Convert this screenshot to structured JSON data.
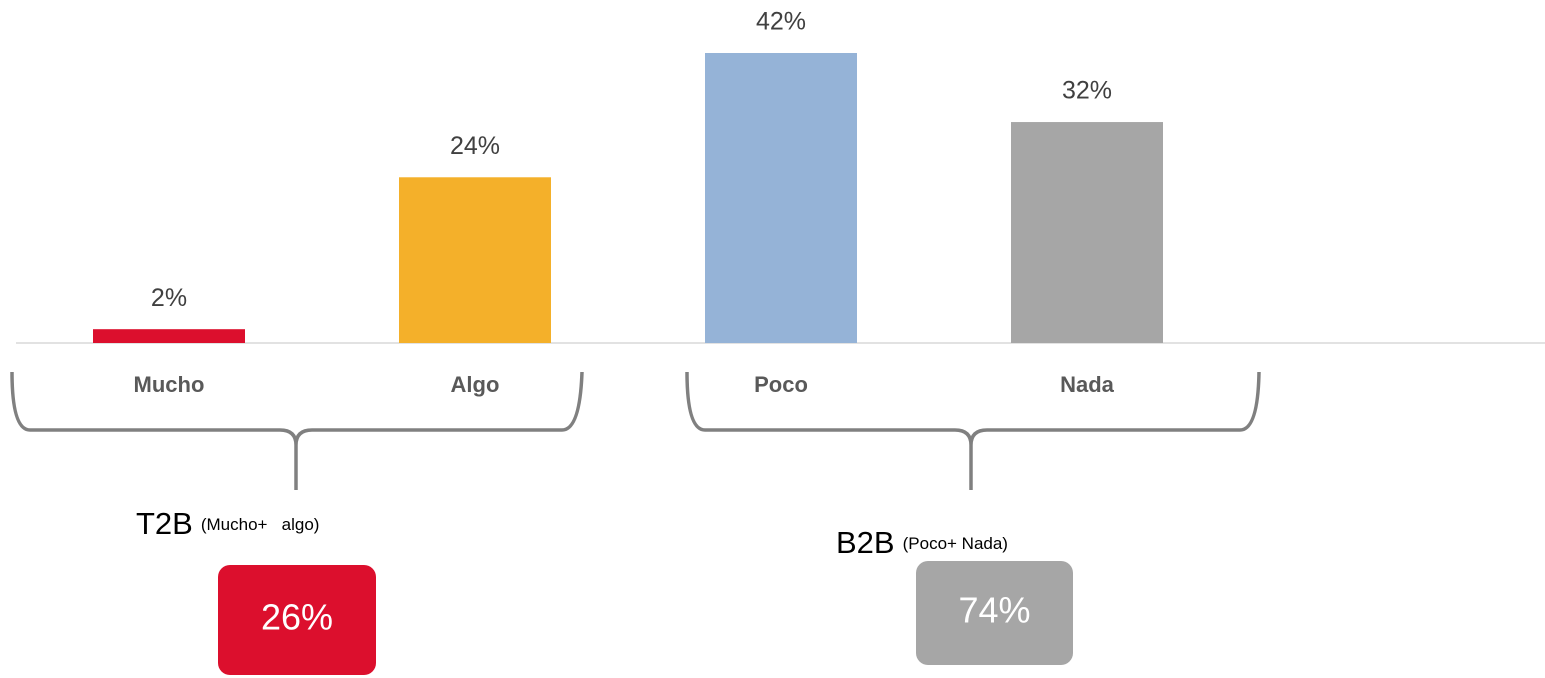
{
  "chart_data": {
    "type": "bar",
    "categories": [
      "Mucho",
      "Algo",
      "Poco",
      "Nada"
    ],
    "values": [
      2,
      24,
      42,
      32
    ],
    "value_labels": [
      "2%",
      "24%",
      "42%",
      "32%"
    ],
    "colors": [
      "#dc0f2d",
      "#f4b02a",
      "#95b3d7",
      "#a6a6a6"
    ],
    "groups": [
      {
        "title": "T2B",
        "subtitle": "(Mucho+   algo)",
        "total": "26%",
        "color": "#dc0f2d"
      },
      {
        "title": "B2B",
        "subtitle": "(Poco+ Nada)",
        "total": "74%",
        "color": "#a6a6a6"
      }
    ]
  }
}
